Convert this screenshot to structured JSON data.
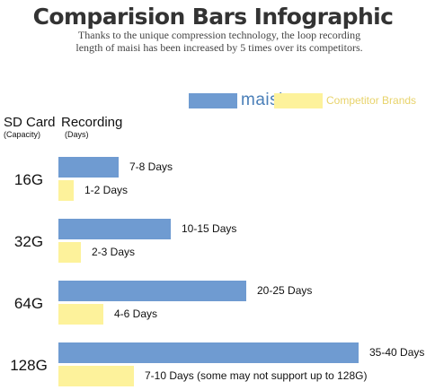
{
  "chart_data": {
    "type": "bar",
    "orientation": "horizontal",
    "title": "Comparision Bars Infographic",
    "subtitle": "Thanks to the unique compression technology, the loop recording length of maisi has been increased by 5 times over its competitors.",
    "category_header": "SD Card",
    "category_header_sub": "(Capacity)",
    "value_header": "Recording",
    "value_header_sub": "(Days)",
    "categories": [
      "16G",
      "32G",
      "64G",
      "128G"
    ],
    "series": [
      {
        "name": "maisi",
        "color": "#6f9bd1",
        "values": [
          8,
          15,
          25,
          40
        ],
        "labels": [
          "7-8 Days",
          "10-15 Days",
          "20-25 Days",
          "35-40 Days"
        ]
      },
      {
        "name": "Competitor Brands",
        "color": "#fdf29b",
        "values": [
          2,
          3,
          6,
          10
        ],
        "labels": [
          "1-2 Days",
          "2-3 Days",
          "4-6 Days",
          "7-10 Days (some may not support up to 128G)"
        ]
      }
    ],
    "legend": "top-right",
    "grid": false
  }
}
